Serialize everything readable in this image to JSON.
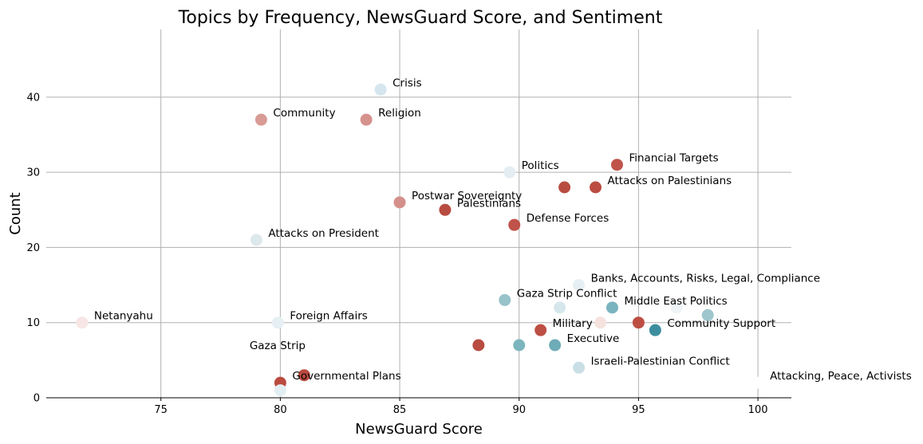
{
  "chart_data": {
    "type": "scatter",
    "title": "Topics by Frequency, NewsGuard Score, and Sentiment",
    "xlabel": "NewsGuard Score",
    "ylabel": "Count",
    "xlim": [
      70.2,
      101.4
    ],
    "ylim": [
      0,
      49
    ],
    "xticks": [
      75,
      80,
      85,
      90,
      95,
      100
    ],
    "yticks": [
      0,
      10,
      20,
      30,
      40
    ],
    "grid": true,
    "legend": "none",
    "points": [
      {
        "label": "Crisis",
        "x": 84.2,
        "y": 41,
        "color": "#d6e6ee"
      },
      {
        "label": "Community",
        "x": 79.2,
        "y": 37,
        "color": "#d99b95"
      },
      {
        "label": "Religion",
        "x": 83.6,
        "y": 37,
        "color": "#d6938d"
      },
      {
        "label": "Financial Targets",
        "x": 94.1,
        "y": 31,
        "color": "#c0544a"
      },
      {
        "label": "Politics",
        "x": 89.6,
        "y": 30,
        "color": "#e4eef2"
      },
      {
        "label": "",
        "x": 91.9,
        "y": 28,
        "color": "#b84c40"
      },
      {
        "label": "Attacks on Palestinians",
        "x": 93.2,
        "y": 28,
        "color": "#bb4d41"
      },
      {
        "label": "Postwar Sovereignty",
        "x": 85.0,
        "y": 26,
        "color": "#d4918c"
      },
      {
        "label": "Palestinians",
        "x": 86.9,
        "y": 25,
        "color": "#b84b3f"
      },
      {
        "label": "Defense Forces",
        "x": 89.8,
        "y": 23,
        "color": "#bf5249"
      },
      {
        "label": "Attacks on President",
        "x": 79.0,
        "y": 21,
        "color": "#dde8ec"
      },
      {
        "label": "Banks, Accounts, Risks, Legal, Compliance",
        "x": 92.5,
        "y": 15,
        "color": "#e6eff3"
      },
      {
        "label": "Gaza Strip Conflict",
        "x": 89.4,
        "y": 13,
        "color": "#98c3ca"
      },
      {
        "label": "",
        "x": 91.7,
        "y": 12,
        "color": "#d6e7ec"
      },
      {
        "label": "Middle East Politics",
        "x": 93.9,
        "y": 12,
        "color": "#7ab4bf"
      },
      {
        "label": "",
        "x": 96.6,
        "y": 12,
        "color": "#eef4f6"
      },
      {
        "label": "",
        "x": 97.9,
        "y": 11,
        "color": "#9fc6cd"
      },
      {
        "label": "Netanyahu",
        "x": 71.7,
        "y": 10,
        "color": "#f7e6e4"
      },
      {
        "label": "Foreign Affairs",
        "x": 79.9,
        "y": 10,
        "color": "#e6eff3"
      },
      {
        "label": "",
        "x": 93.4,
        "y": 10,
        "color": "#f5e2df"
      },
      {
        "label": "",
        "x": 95.0,
        "y": 10,
        "color": "#bd4e43"
      },
      {
        "label": "Military",
        "x": 90.9,
        "y": 9,
        "color": "#bd4f44"
      },
      {
        "label": "Community Support",
        "x": 95.7,
        "y": 9,
        "color": "#3c8e9e"
      },
      {
        "label": "Gaza Strip",
        "x": 88.3,
        "y": 7,
        "color": "#b94c41"
      },
      {
        "label": "",
        "x": 90.0,
        "y": 7,
        "color": "#7db5bf"
      },
      {
        "label": "Executive",
        "x": 91.5,
        "y": 7,
        "color": "#6eacb8"
      },
      {
        "label": "Israeli-Palestinian Conflict",
        "x": 92.5,
        "y": 4,
        "color": "#c9dfe5"
      },
      {
        "label": "Attacking, Peace, Activists",
        "x": 100.0,
        "y": 2,
        "color": "#ffffff"
      },
      {
        "label": "",
        "x": 81.0,
        "y": 3,
        "color": "#b94a3f"
      },
      {
        "label": "Governmental Plans",
        "x": 80.0,
        "y": 2,
        "color": "#bb4b40"
      },
      {
        "label": "",
        "x": 80.0,
        "y": 1,
        "color": "#e3eef2"
      }
    ]
  }
}
